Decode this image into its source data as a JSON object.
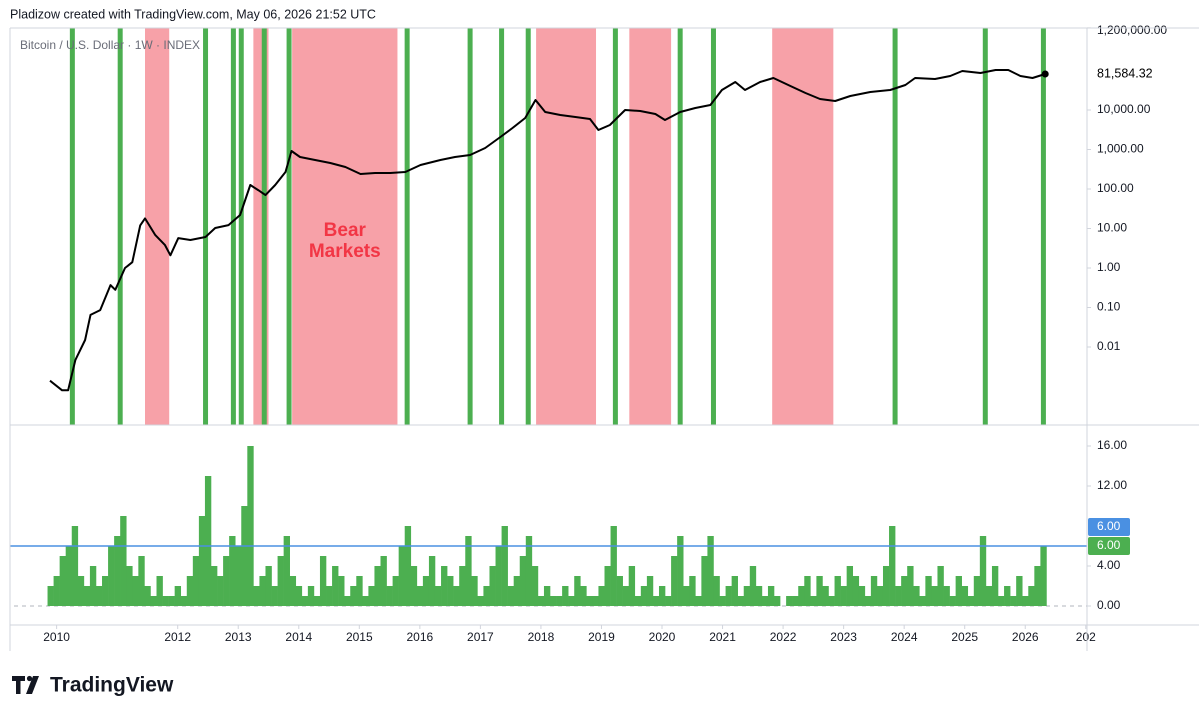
{
  "header": {
    "text": "Pladizow created with TradingView.com, May 06, 2026 21:52 UTC"
  },
  "footer": {
    "brand": "TradingView"
  },
  "chart_data": [
    {
      "type": "line",
      "title": "Bitcoin / U.S. Dollar · 1W · INDEX",
      "x": [
        2009.89,
        2010.09,
        2010.19,
        2010.31,
        2010.47,
        2010.56,
        2010.72,
        2010.89,
        2010.97,
        2011.13,
        2011.25,
        2011.38,
        2011.46,
        2011.63,
        2011.79,
        2011.88,
        2012.01,
        2012.21,
        2012.46,
        2012.62,
        2012.84,
        2013.03,
        2013.2,
        2013.33,
        2013.45,
        2013.61,
        2013.78,
        2013.88,
        2014.02,
        2014.27,
        2014.52,
        2014.77,
        2015.02,
        2015.26,
        2015.51,
        2015.76,
        2016.01,
        2016.34,
        2016.58,
        2016.83,
        2017.08,
        2017.33,
        2017.53,
        2017.74,
        2017.91,
        2018.07,
        2018.32,
        2018.57,
        2018.81,
        2018.95,
        2019.14,
        2019.39,
        2019.64,
        2019.89,
        2020.05,
        2020.3,
        2020.55,
        2020.8,
        2020.99,
        2021.21,
        2021.37,
        2021.62,
        2021.84,
        2022.12,
        2022.37,
        2022.61,
        2022.86,
        2023.11,
        2023.44,
        2023.77,
        2024.02,
        2024.18,
        2024.51,
        2024.76,
        2024.96,
        2025.26,
        2025.51,
        2025.72,
        2025.92,
        2026.12,
        2026.33
      ],
      "values": [
        0.0014,
        0.0008,
        0.0008,
        0.0047,
        0.015,
        0.065,
        0.086,
        0.37,
        0.28,
        1.0,
        1.4,
        12,
        18,
        6.8,
        3.8,
        2.1,
        5.7,
        5.1,
        6.1,
        10.3,
        12.2,
        21.9,
        126,
        94,
        70,
        126,
        269,
        916,
        646,
        542,
        455,
        361,
        240,
        254,
        254,
        269,
        405,
        542,
        646,
        726,
        1091,
        2070,
        3500,
        6270,
        17900,
        8900,
        7460,
        6650,
        5920,
        3120,
        4170,
        10000,
        9440,
        7920,
        5590,
        8900,
        11200,
        13400,
        32100,
        51100,
        32100,
        51100,
        64600,
        40500,
        26900,
        19000,
        16900,
        22600,
        28500,
        32100,
        43000,
        64600,
        61000,
        72600,
        97100,
        86500,
        103000,
        103000,
        72600,
        64600,
        81584.32
      ],
      "color": "#000000",
      "last_price_label": "81,584.32",
      "log_scale": true,
      "xlim": [
        2009.23,
        2027.02
      ],
      "ylim": [
        0.000106,
        1190000
      ],
      "yticks": [
        {
          "value": 0.01,
          "label": "0.01"
        },
        {
          "value": 0.1,
          "label": "0.10"
        },
        {
          "value": 1,
          "label": "1.00"
        },
        {
          "value": 10,
          "label": "10.00"
        },
        {
          "value": 100,
          "label": "100.00"
        },
        {
          "value": 1000,
          "label": "1,000.00"
        },
        {
          "value": 10000,
          "label": "10,000.00"
        },
        {
          "value": 1200000,
          "label": "1,200,000.00"
        }
      ],
      "grid": false,
      "bear_markets": [
        [
          2011.46,
          2011.86
        ],
        [
          2013.25,
          2013.5
        ],
        [
          2013.89,
          2015.63
        ],
        [
          2017.92,
          2018.91
        ],
        [
          2019.46,
          2020.15
        ],
        [
          2021.82,
          2022.83
        ]
      ],
      "bear_color": "#f7a1a8",
      "annotation": [
        "Bear",
        "Markets"
      ],
      "annotation_color": "#f23645",
      "signal_x": [
        2010.26,
        2011.05,
        2012.46,
        2012.92,
        2013.05,
        2013.43,
        2013.84,
        2015.79,
        2016.83,
        2017.35,
        2017.79,
        2019.23,
        2020.3,
        2020.85,
        2023.85,
        2025.34,
        2026.3
      ],
      "signal_color": "#4caf50"
    },
    {
      "type": "histogram",
      "x": [
        2009.9,
        2010.0,
        2010.1,
        2010.2,
        2010.3,
        2010.4,
        2010.5,
        2010.6,
        2010.7,
        2010.8,
        2010.9,
        2011.0,
        2011.1,
        2011.2,
        2011.3,
        2011.4,
        2011.5,
        2011.6,
        2011.7,
        2011.8,
        2011.9,
        2012.0,
        2012.1,
        2012.2,
        2012.3,
        2012.4,
        2012.5,
        2012.6,
        2012.7,
        2012.8,
        2012.9,
        2013.0,
        2013.1,
        2013.2,
        2013.3,
        2013.4,
        2013.5,
        2013.6,
        2013.7,
        2013.8,
        2013.9,
        2014.0,
        2014.1,
        2014.2,
        2014.3,
        2014.4,
        2014.5,
        2014.6,
        2014.7,
        2014.8,
        2014.9,
        2015.0,
        2015.1,
        2015.2,
        2015.3,
        2015.4,
        2015.5,
        2015.6,
        2015.7,
        2015.8,
        2015.9,
        2016.0,
        2016.1,
        2016.2,
        2016.3,
        2016.4,
        2016.5,
        2016.6,
        2016.7,
        2016.8,
        2016.9,
        2017.0,
        2017.1,
        2017.2,
        2017.3,
        2017.4,
        2017.5,
        2017.6,
        2017.7,
        2017.8,
        2017.9,
        2018.0,
        2018.1,
        2018.2,
        2018.3,
        2018.4,
        2018.5,
        2018.6,
        2018.7,
        2018.8,
        2018.9,
        2019.0,
        2019.1,
        2019.2,
        2019.3,
        2019.4,
        2019.5,
        2019.6,
        2019.7,
        2019.8,
        2019.9,
        2020.0,
        2020.1,
        2020.2,
        2020.3,
        2020.4,
        2020.5,
        2020.6,
        2020.7,
        2020.8,
        2020.9,
        2021.0,
        2021.1,
        2021.2,
        2021.3,
        2021.4,
        2021.5,
        2021.6,
        2021.7,
        2021.8,
        2021.9,
        2022.0,
        2022.1,
        2022.2,
        2022.3,
        2022.4,
        2022.5,
        2022.6,
        2022.7,
        2022.8,
        2022.9,
        2023.0,
        2023.1,
        2023.2,
        2023.3,
        2023.4,
        2023.5,
        2023.6,
        2023.7,
        2023.8,
        2023.9,
        2024.0,
        2024.1,
        2024.2,
        2024.3,
        2024.4,
        2024.5,
        2024.6,
        2024.7,
        2024.8,
        2024.9,
        2025.0,
        2025.1,
        2025.2,
        2025.3,
        2025.4,
        2025.5,
        2025.6,
        2025.7,
        2025.8,
        2025.9,
        2026.0,
        2026.1,
        2026.2,
        2026.3
      ],
      "values": [
        2,
        3,
        5,
        6,
        8,
        3,
        2,
        4,
        2,
        3,
        6,
        7,
        9,
        4,
        3,
        5,
        2,
        1,
        3,
        1,
        1,
        2,
        1,
        3,
        5,
        9,
        13,
        4,
        3,
        5,
        7,
        6,
        10,
        16,
        2,
        3,
        4,
        2,
        5,
        7,
        3,
        2,
        1,
        2,
        1,
        5,
        2,
        4,
        3,
        1,
        2,
        3,
        1,
        2,
        4,
        5,
        2,
        3,
        6,
        8,
        4,
        2,
        3,
        5,
        2,
        4,
        3,
        2,
        4,
        7,
        3,
        1,
        2,
        4,
        6,
        8,
        2,
        3,
        5,
        7,
        4,
        1,
        2,
        1,
        1,
        2,
        1,
        3,
        2,
        1,
        1,
        2,
        4,
        8,
        3,
        2,
        4,
        1,
        2,
        3,
        1,
        2,
        1,
        5,
        7,
        2,
        3,
        1,
        5,
        7,
        3,
        1,
        2,
        3,
        1,
        2,
        4,
        2,
        1,
        2,
        1,
        0,
        1,
        1,
        2,
        3,
        1,
        3,
        2,
        1,
        3,
        2,
        4,
        3,
        2,
        1,
        3,
        2,
        4,
        8,
        2,
        3,
        4,
        2,
        1,
        3,
        2,
        4,
        2,
        1,
        3,
        2,
        1,
        3,
        7,
        2,
        4,
        1,
        2,
        1,
        3,
        1,
        2,
        4,
        6
      ],
      "color": "#4caf50",
      "last_value_label": "6.00",
      "hline": {
        "value": 6,
        "label": "6.00"
      },
      "hline_color": "#4a90e2",
      "xlim": [
        2009.23,
        2027.02
      ],
      "xticks": [
        2010,
        2012,
        2013,
        2014,
        2015,
        2016,
        2017,
        2018,
        2019,
        2020,
        2021,
        2022,
        2023,
        2024,
        2025,
        2026,
        {
          "value": 2027,
          "label": "202"
        }
      ],
      "ylim": [
        -1.9,
        18.1
      ],
      "yticks": [
        {
          "value": 0,
          "label": "0.00"
        },
        {
          "value": 4,
          "label": "4.00"
        },
        {
          "value": 12,
          "label": "12.00"
        },
        {
          "value": 16,
          "label": "16.00"
        }
      ],
      "grid": false
    }
  ]
}
